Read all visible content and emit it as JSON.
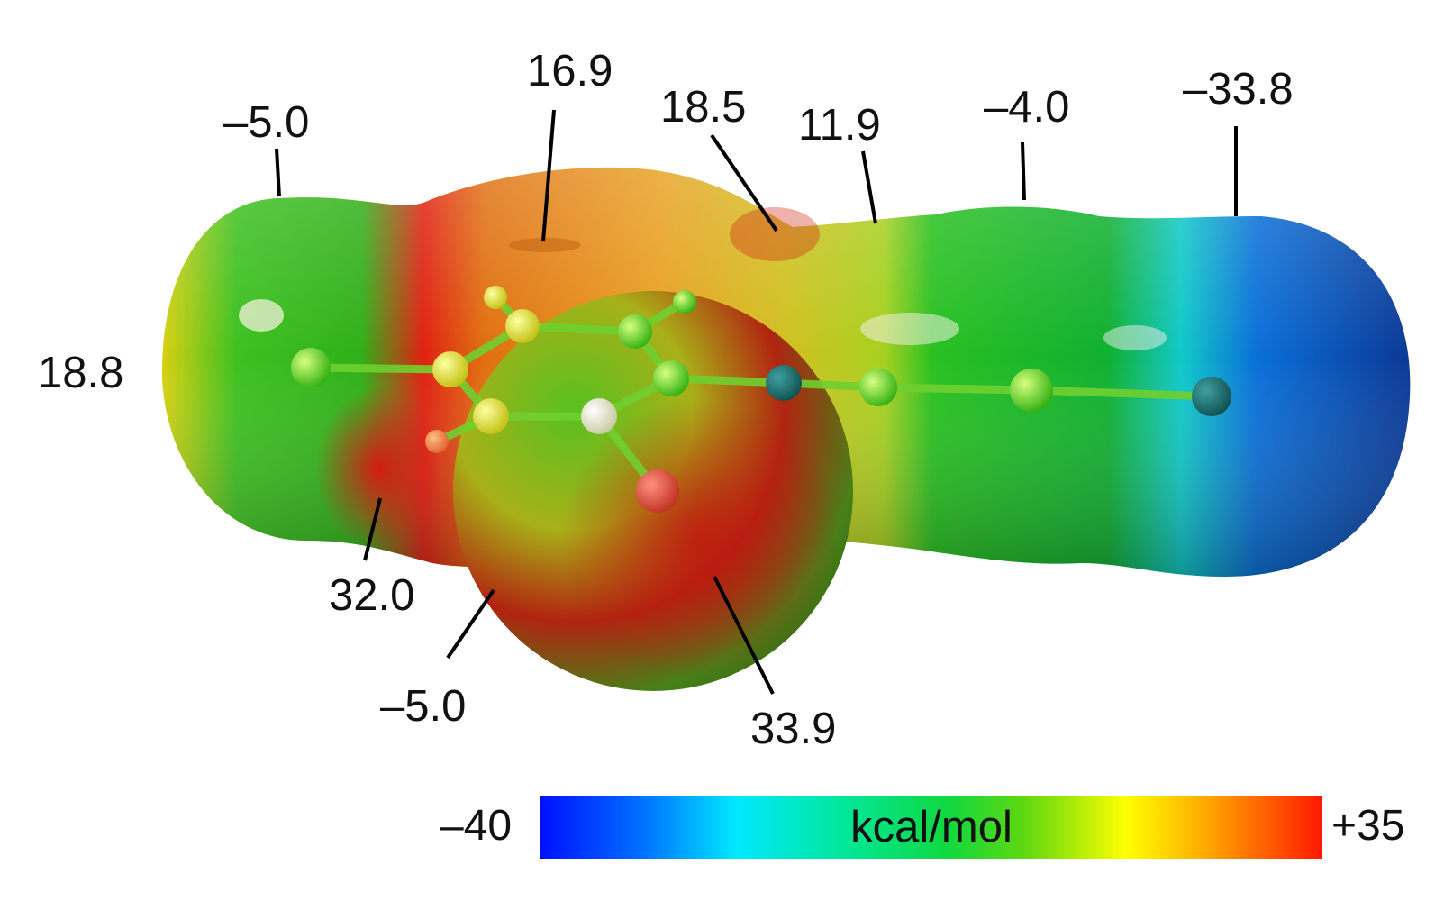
{
  "labels": [
    {
      "id": "top-left",
      "text": "–5.0"
    },
    {
      "id": "top-ring",
      "text": "16.9"
    },
    {
      "id": "top-center",
      "text": "18.5"
    },
    {
      "id": "top-right-mid",
      "text": "11.9"
    },
    {
      "id": "top-right",
      "text": "–4.0"
    },
    {
      "id": "top-far-right",
      "text": "–33.8"
    },
    {
      "id": "left",
      "text": "18.8"
    },
    {
      "id": "bottom-left",
      "text": "32.0"
    },
    {
      "id": "bottom-mid",
      "text": "–5.0"
    },
    {
      "id": "bottom-center",
      "text": "33.9"
    }
  ],
  "color_scale": {
    "min_label": "–40",
    "max_label": "+35",
    "unit": "kcal/mol",
    "min_value": -40,
    "max_value": 35,
    "stops": [
      "#0010ff",
      "#0090ff",
      "#00ffff",
      "#00e060",
      "#40d000",
      "#ffff00",
      "#ff9800",
      "#ff2000"
    ]
  }
}
